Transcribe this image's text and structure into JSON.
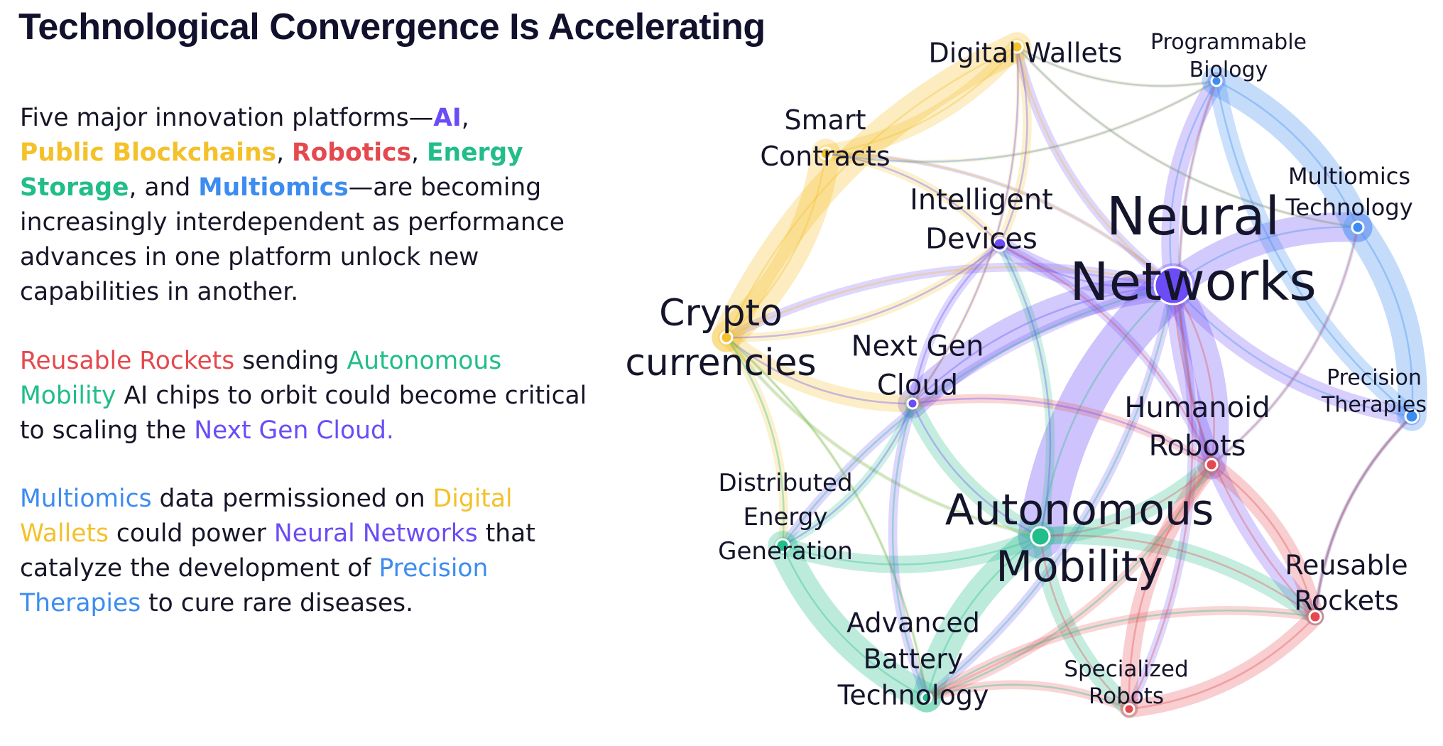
{
  "title": "Technological Convergence Is Accelerating",
  "paragraph1": {
    "t1": "Five major innovation platforms—",
    "ai": "AI",
    "t2": ",",
    "blockchain": "Public Blockchains",
    "t3": ",",
    "robotics": "Robotics",
    "t4": ",",
    "energy": "Energy Storage",
    "t5": ", and",
    "multiomics": "Multiomics",
    "t6": "—are becoming increasingly interdependent as performance advances in one platform unlock new capabilities in another."
  },
  "paragraph2": {
    "rockets": "Reusable Rockets",
    "t1": "sending",
    "mobility": "Autonomous Mobility",
    "t2": "AI chips to orbit could become critical to scaling the",
    "cloud": "Next Gen Cloud."
  },
  "paragraph3": {
    "multiomics": "Multiomics",
    "t1": "data permissioned on",
    "wallets": "Digital Wallets",
    "t2": "could power",
    "neural": "Neural Networks",
    "t3": "that catalyze the development of",
    "therapies": "Precision Therapies",
    "t4": "to cure rare diseases."
  },
  "colors": {
    "ai": "#6b4cf6",
    "blockchain": "#f4c12b",
    "robotics": "#e5484d",
    "energy": "#21bd8a",
    "multiomics": "#3d8cf0"
  },
  "network": {
    "nodes": [
      {
        "id": "neural",
        "lines": [
          "Neural",
          "Networks"
        ],
        "group": "ai",
        "weight": 5
      },
      {
        "id": "mobility",
        "lines": [
          "Autonomous",
          "Mobility"
        ],
        "group": "energy",
        "weight": 4
      },
      {
        "id": "crypto",
        "lines": [
          "Crypto",
          "currencies"
        ],
        "group": "blockchain",
        "weight": 3
      },
      {
        "id": "nextgen",
        "lines": [
          "Next Gen",
          "Cloud"
        ],
        "group": "ai",
        "weight": 2
      },
      {
        "id": "intelligent",
        "lines": [
          "Intelligent",
          "Devices"
        ],
        "group": "ai",
        "weight": 2
      },
      {
        "id": "smart",
        "lines": [
          "Smart",
          "Contracts"
        ],
        "group": "blockchain",
        "weight": 2
      },
      {
        "id": "wallets",
        "lines": [
          "Digital Wallets"
        ],
        "group": "blockchain",
        "weight": 2
      },
      {
        "id": "progbio",
        "lines": [
          "Programmable",
          "Biology"
        ],
        "group": "multiomics",
        "weight": 1
      },
      {
        "id": "omicstech",
        "lines": [
          "Multiomics",
          "Technology"
        ],
        "group": "multiomics",
        "weight": 1
      },
      {
        "id": "precision",
        "lines": [
          "Precision",
          "Therapies"
        ],
        "group": "multiomics",
        "weight": 1
      },
      {
        "id": "humanoid",
        "lines": [
          "Humanoid",
          "Robots"
        ],
        "group": "robotics",
        "weight": 2
      },
      {
        "id": "rockets",
        "lines": [
          "Reusable",
          "Rockets"
        ],
        "group": "robotics",
        "weight": 2
      },
      {
        "id": "specialized",
        "lines": [
          "Specialized",
          "Robots"
        ],
        "group": "robotics",
        "weight": 1
      },
      {
        "id": "battery",
        "lines": [
          "Advanced",
          "Battery",
          "Technology"
        ],
        "group": "energy",
        "weight": 2
      },
      {
        "id": "distributed",
        "lines": [
          "Distributed",
          "Energy",
          "Generation"
        ],
        "group": "energy",
        "weight": 2
      }
    ],
    "edges": [
      [
        "neural",
        "mobility",
        5
      ],
      [
        "neural",
        "intelligent",
        3
      ],
      [
        "neural",
        "nextgen",
        4
      ],
      [
        "neural",
        "omicstech",
        4
      ],
      [
        "neural",
        "precision",
        3
      ],
      [
        "neural",
        "humanoid",
        4
      ],
      [
        "neural",
        "rockets",
        3
      ],
      [
        "neural",
        "progbio",
        3
      ],
      [
        "neural",
        "crypto",
        2
      ],
      [
        "neural",
        "wallets",
        2
      ],
      [
        "neural",
        "smart",
        1
      ],
      [
        "neural",
        "battery",
        2
      ],
      [
        "neural",
        "distributed",
        2
      ],
      [
        "neural",
        "specialized",
        2
      ],
      [
        "mobility",
        "battery",
        4
      ],
      [
        "mobility",
        "distributed",
        3
      ],
      [
        "mobility",
        "humanoid",
        3
      ],
      [
        "mobility",
        "rockets",
        3
      ],
      [
        "mobility",
        "specialized",
        3
      ],
      [
        "mobility",
        "nextgen",
        3
      ],
      [
        "mobility",
        "intelligent",
        2
      ],
      [
        "mobility",
        "crypto",
        1
      ],
      [
        "crypto",
        "smart",
        4
      ],
      [
        "crypto",
        "wallets",
        4
      ],
      [
        "crypto",
        "nextgen",
        3
      ],
      [
        "crypto",
        "distributed",
        2
      ],
      [
        "crypto",
        "intelligent",
        2
      ],
      [
        "crypto",
        "battery",
        1
      ],
      [
        "smart",
        "wallets",
        3
      ],
      [
        "smart",
        "intelligent",
        2
      ],
      [
        "smart",
        "progbio",
        1
      ],
      [
        "wallets",
        "intelligent",
        2
      ],
      [
        "wallets",
        "progbio",
        1
      ],
      [
        "wallets",
        "nextgen",
        1
      ],
      [
        "wallets",
        "omicstech",
        1
      ],
      [
        "progbio",
        "omicstech",
        4
      ],
      [
        "progbio",
        "precision",
        3
      ],
      [
        "omicstech",
        "precision",
        4
      ],
      [
        "progbio",
        "humanoid",
        1
      ],
      [
        "humanoid",
        "rockets",
        3
      ],
      [
        "humanoid",
        "specialized",
        3
      ],
      [
        "humanoid",
        "battery",
        2
      ],
      [
        "humanoid",
        "nextgen",
        2
      ],
      [
        "rockets",
        "specialized",
        3
      ],
      [
        "rockets",
        "battery",
        2
      ],
      [
        "rockets",
        "precision",
        1
      ],
      [
        "specialized",
        "battery",
        2
      ],
      [
        "battery",
        "distributed",
        4
      ],
      [
        "distributed",
        "nextgen",
        2
      ],
      [
        "nextgen",
        "intelligent",
        2
      ],
      [
        "nextgen",
        "battery",
        2
      ],
      [
        "intelligent",
        "humanoid",
        2
      ],
      [
        "precision",
        "rockets",
        1
      ],
      [
        "omicstech",
        "humanoid",
        1
      ]
    ]
  }
}
